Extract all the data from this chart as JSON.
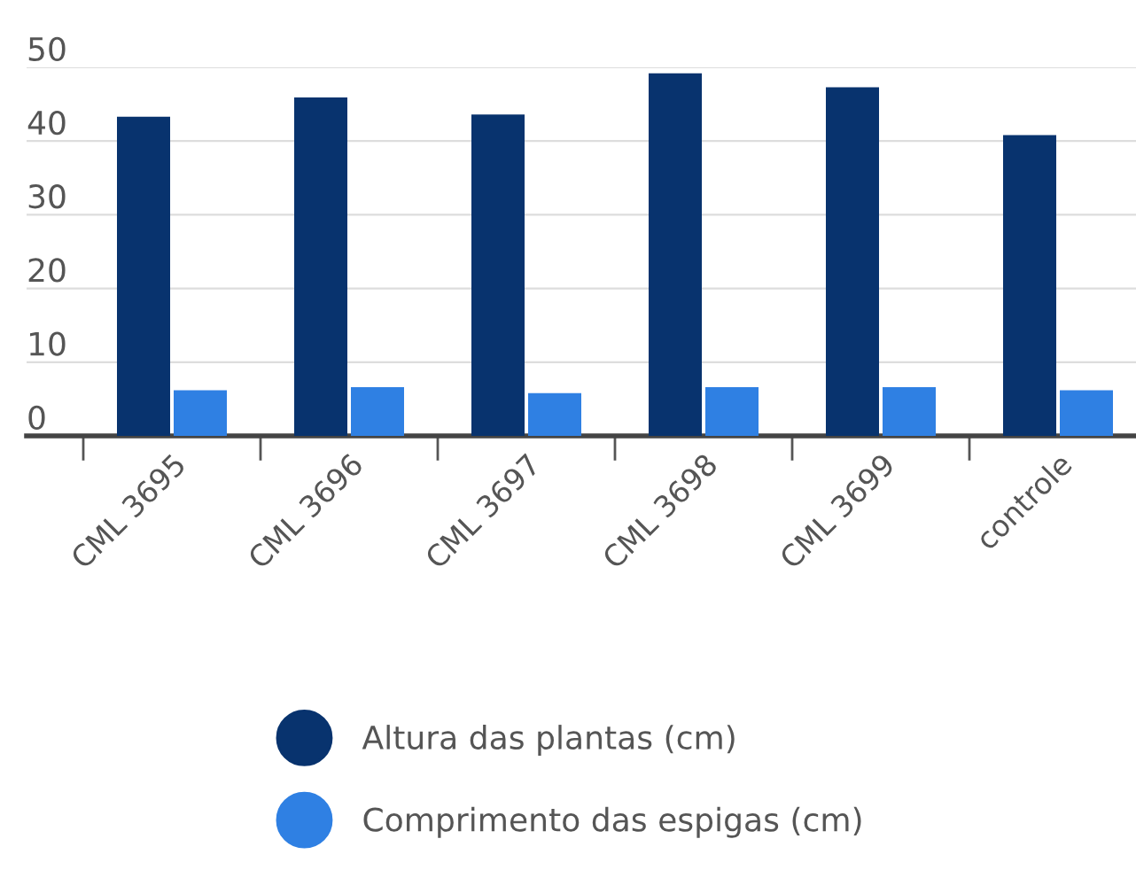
{
  "chart_data": {
    "type": "bar",
    "categories": [
      "CML 3695",
      "CML 3696",
      "CML 3697",
      "CML 3698",
      "CML 3699",
      "controle"
    ],
    "series": [
      {
        "name": "Altura das plantas (cm)",
        "color": "#08336e",
        "values": [
          43.3,
          45.9,
          43.6,
          49.2,
          47.3,
          40.8
        ]
      },
      {
        "name": "Comprimento das espigas (cm)",
        "color": "#2f80e3",
        "values": [
          6.2,
          6.6,
          5.8,
          6.6,
          6.6,
          6.2
        ]
      }
    ],
    "ylim": [
      0,
      50
    ],
    "yticks": [
      0,
      10,
      20,
      30,
      40,
      50
    ],
    "grid": "y",
    "legend": "bottom",
    "marker": "circle"
  }
}
